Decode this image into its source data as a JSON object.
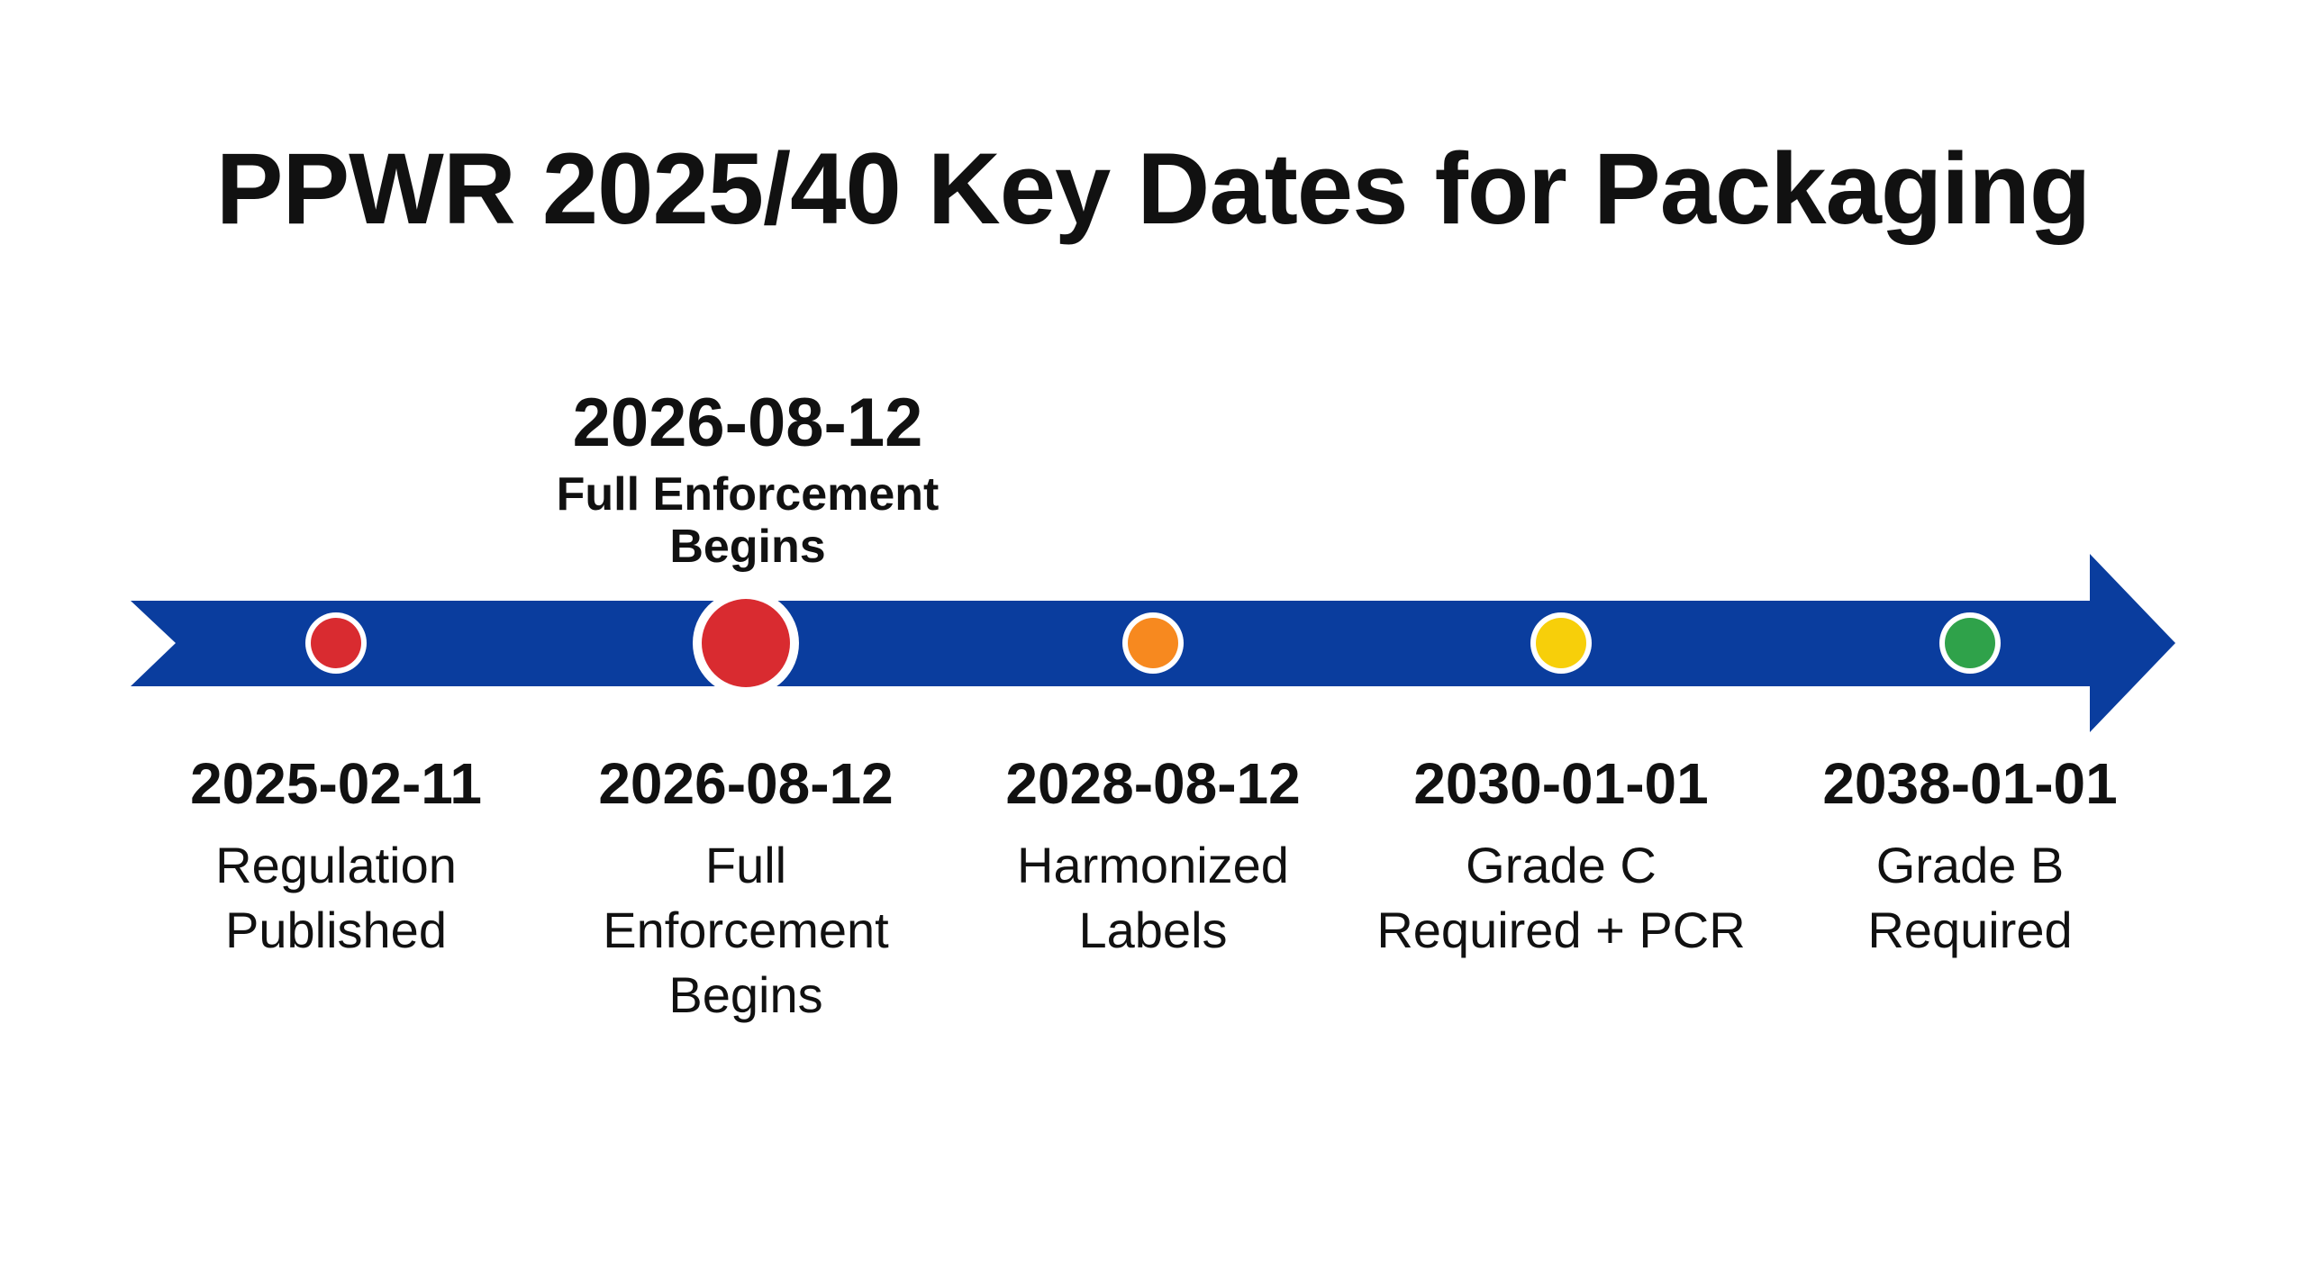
{
  "title": "PPWR 2025/40 Key Dates for Packaging",
  "highlight": {
    "date": "2026-08-12",
    "label_line1": "Full Enforcement",
    "label_line2": "Begins"
  },
  "colors": {
    "arrow": "#0a3d9e",
    "marker_border": "#ffffff",
    "red": "#d92b30",
    "orange": "#f7891f",
    "yellow": "#f7cf0a",
    "green": "#2fa24a"
  },
  "milestones": [
    {
      "date": "2025-02-11",
      "label": [
        "Regulation",
        "Published"
      ],
      "color": "#d92b30",
      "emphasized": false
    },
    {
      "date": "2026-08-12",
      "label": [
        "Full",
        "Enforcement",
        "Begins"
      ],
      "color": "#d92b30",
      "emphasized": true
    },
    {
      "date": "2028-08-12",
      "label": [
        "Harmonized",
        "Labels"
      ],
      "color": "#f7891f",
      "emphasized": false
    },
    {
      "date": "2030-01-01",
      "label": [
        "Grade C",
        "Required + PCR"
      ],
      "color": "#f7cf0a",
      "emphasized": false
    },
    {
      "date": "2038-01-01",
      "label": [
        "Grade B",
        "Required"
      ],
      "color": "#2fa24a",
      "emphasized": false
    }
  ]
}
